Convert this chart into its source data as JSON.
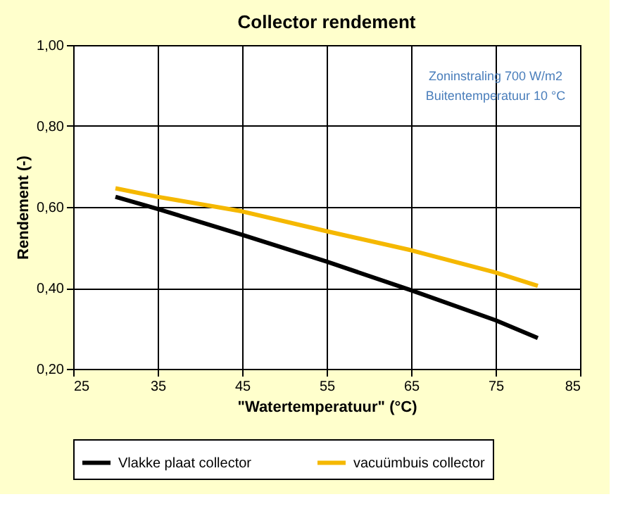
{
  "chart_data": {
    "type": "line",
    "title": "Collector rendement",
    "xlabel": "\"Watertemperatuur\" (°C)",
    "ylabel": "Rendement (-)",
    "x": [
      30,
      35,
      45,
      55,
      65,
      75,
      80
    ],
    "series": [
      {
        "name": "Vlakke plaat collector",
        "color": "#000000",
        "values": [
          0.625,
          0.595,
          0.531,
          0.465,
          0.394,
          0.32,
          0.276
        ]
      },
      {
        "name": "vacuümbuis collector",
        "color": "#f5b800",
        "values": [
          0.646,
          0.625,
          0.589,
          0.54,
          0.493,
          0.438,
          0.405
        ]
      }
    ],
    "xlim": [
      25,
      85
    ],
    "xticks": [
      25,
      35,
      45,
      55,
      65,
      75,
      85
    ],
    "ylim": [
      0.2,
      1.0
    ],
    "yticks": [
      {
        "value": 0.2,
        "label": "0,20"
      },
      {
        "value": 0.4,
        "label": "0,40"
      },
      {
        "value": 0.6,
        "label": "0,60"
      },
      {
        "value": 0.8,
        "label": "0,80"
      },
      {
        "value": 1.0,
        "label": "1,00"
      }
    ],
    "annotations": [
      {
        "text": "Zoninstraling 700  W/m2"
      },
      {
        "text": "Buitentemperatuur 10 °C"
      }
    ],
    "grid": true,
    "legend": "bottom",
    "marker": "none",
    "line_style": "solid"
  }
}
